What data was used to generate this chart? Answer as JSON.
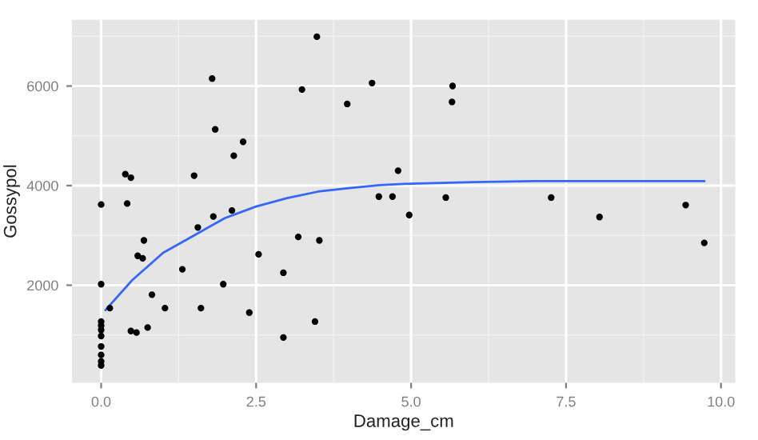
{
  "chart_data": {
    "type": "scatter",
    "xlabel": "Damage_cm",
    "ylabel": "Gossypol",
    "xlim": [
      -0.47,
      10.23
    ],
    "ylim": [
      40,
      7330
    ],
    "xticks": [
      {
        "value": 0,
        "label": "0.0"
      },
      {
        "value": 2.5,
        "label": "2.5"
      },
      {
        "value": 5,
        "label": "5.0"
      },
      {
        "value": 7.5,
        "label": "7.5"
      },
      {
        "value": 10,
        "label": "10.0"
      }
    ],
    "yticks": [
      2000,
      4000,
      6000
    ],
    "grid": true,
    "marker": "circle",
    "series": [
      {
        "color": "#000000",
        "x": [
          0,
          0,
          0,
          0,
          0,
          0,
          0,
          0,
          0,
          0,
          0.14,
          0.39,
          0.48,
          0.42,
          0.48,
          0.57,
          0.59,
          0.67,
          0.69,
          0.75,
          0.82,
          1.03,
          1.31,
          1.5,
          1.56,
          1.61,
          1.79,
          1.81,
          1.84,
          1.97,
          2.11,
          2.14,
          2.29,
          2.39,
          2.54,
          2.94,
          2.94,
          3.18,
          3.24,
          3.45,
          3.48,
          3.52,
          3.97,
          4.37,
          4.48,
          4.7,
          4.79,
          4.97,
          5.56,
          5.67,
          5.66,
          7.26,
          8.04,
          9.43,
          9.73
        ],
        "values": [
          3620,
          2020,
          1270,
          1190,
          1100,
          980,
          770,
          600,
          470,
          390,
          1540,
          4230,
          4160,
          3640,
          1080,
          1050,
          2590,
          2540,
          2900,
          1150,
          1810,
          1540,
          2320,
          4200,
          3160,
          1540,
          6150,
          3380,
          5130,
          2020,
          3500,
          4600,
          4880,
          1450,
          2620,
          2250,
          950,
          2970,
          5930,
          1270,
          6990,
          2900,
          5640,
          6060,
          3780,
          3780,
          4300,
          3410,
          3760,
          6000,
          5680,
          3760,
          3370,
          3610,
          2850
        ]
      },
      {
        "type": "line",
        "color": "#3366ff",
        "marker": "none",
        "x": [
          0.07,
          0.5,
          1.0,
          1.5,
          2.0,
          2.5,
          3.0,
          3.5,
          4.0,
          4.5,
          5.0,
          6.0,
          7.0,
          8.0,
          9.0,
          9.73
        ],
        "values": [
          1500,
          2100,
          2650,
          3000,
          3350,
          3580,
          3750,
          3880,
          3950,
          4010,
          4040,
          4070,
          4090,
          4090,
          4090,
          4090
        ]
      }
    ]
  }
}
